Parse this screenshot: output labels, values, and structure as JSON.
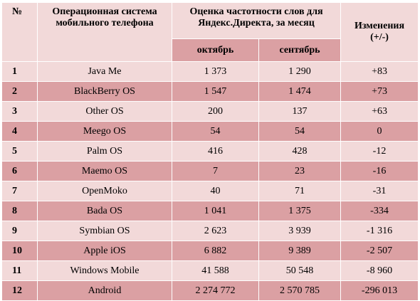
{
  "header": {
    "num": "№",
    "os_line1": "Операционная система",
    "os_line2": "мобильного телефона",
    "estimate_line1": "Оценка частотности слов для",
    "estimate_line2": "Яндекс.Директа, за месяц",
    "october": "октябрь",
    "september": "сентябрь",
    "change_line1": "Изменения",
    "change_line2": "(+/-)"
  },
  "rows": [
    {
      "num": "1",
      "os": "Java Me",
      "oct": "1 373",
      "sep": "1 290",
      "change": "+83"
    },
    {
      "num": "2",
      "os": "BlackBerry OS",
      "oct": "1 547",
      "sep": "1 474",
      "change": "+73"
    },
    {
      "num": "3",
      "os": "Other OS",
      "oct": "200",
      "sep": "137",
      "change": "+63"
    },
    {
      "num": "4",
      "os": "Meego OS",
      "oct": "54",
      "sep": "54",
      "change": "0"
    },
    {
      "num": "5",
      "os": "Palm OS",
      "oct": "416",
      "sep": "428",
      "change": "-12"
    },
    {
      "num": "6",
      "os": "Maemo OS",
      "oct": "7",
      "sep": "23",
      "change": "-16"
    },
    {
      "num": "7",
      "os": "OpenMoko",
      "oct": "40",
      "sep": "71",
      "change": "-31"
    },
    {
      "num": "8",
      "os": "Bada OS",
      "oct": "1 041",
      "sep": "1 375",
      "change": "-334"
    },
    {
      "num": "9",
      "os": "Symbian OS",
      "oct": "2 623",
      "sep": "3 939",
      "change": "-1 316"
    },
    {
      "num": "10",
      "os": "Apple iOS",
      "oct": "6 882",
      "sep": "9 389",
      "change": "-2 507"
    },
    {
      "num": "11",
      "os": "Windows Mobile",
      "oct": "41 588",
      "sep": "50 548",
      "change": "-8 960"
    },
    {
      "num": "12",
      "os": "Android",
      "oct": "2 274 772",
      "sep": "2 570 785",
      "change": "-296 013"
    }
  ],
  "colors": {
    "row_light": "#f2d9d9",
    "row_dark": "#dba0a3"
  }
}
